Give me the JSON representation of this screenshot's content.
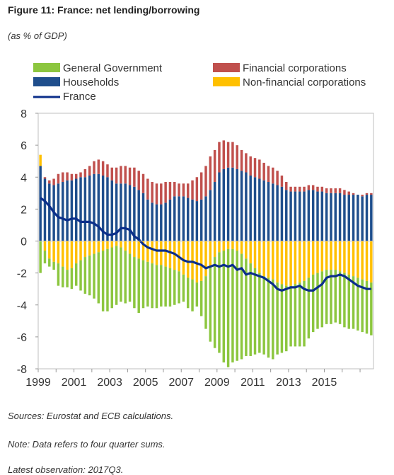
{
  "figure": {
    "title": "Figure 11: France: net lending/borrowing",
    "subtitle": "(as % of GDP)"
  },
  "notes": [
    "Sources: Eurostat and ECB calculations.",
    "Note: Data refers to four quarter sums.",
    "Latest observation: 2017Q3."
  ],
  "chart_data": {
    "type": "bar",
    "stacked": true,
    "title": "France: net lending/borrowing",
    "ylabel": "",
    "ylim": [
      -8,
      8
    ],
    "yticks": [
      8,
      6,
      4,
      2,
      0,
      -2,
      -4,
      -6,
      -8
    ],
    "xticks": [
      "1999",
      "2001",
      "2003",
      "2005",
      "2007",
      "2009",
      "2011",
      "2013",
      "2015"
    ],
    "legend": [
      {
        "name": "General Government",
        "color": "#8cc63f",
        "kind": "bar"
      },
      {
        "name": "Financial corporations",
        "color": "#c0504d",
        "kind": "bar"
      },
      {
        "name": "Households",
        "color": "#1f4e8c",
        "kind": "bar"
      },
      {
        "name": "Non-financial corporations",
        "color": "#ffc000",
        "kind": "bar"
      },
      {
        "name": "France",
        "color": "#0b2e8a",
        "kind": "line"
      }
    ],
    "legend_position": "top",
    "x_start": "1999Q1",
    "x_end": "2017Q3",
    "x": [
      "1999Q1",
      "1999Q2",
      "1999Q3",
      "1999Q4",
      "2000Q1",
      "2000Q2",
      "2000Q3",
      "2000Q4",
      "2001Q1",
      "2001Q2",
      "2001Q3",
      "2001Q4",
      "2002Q1",
      "2002Q2",
      "2002Q3",
      "2002Q4",
      "2003Q1",
      "2003Q2",
      "2003Q3",
      "2003Q4",
      "2004Q1",
      "2004Q2",
      "2004Q3",
      "2004Q4",
      "2005Q1",
      "2005Q2",
      "2005Q3",
      "2005Q4",
      "2006Q1",
      "2006Q2",
      "2006Q3",
      "2006Q4",
      "2007Q1",
      "2007Q2",
      "2007Q3",
      "2007Q4",
      "2008Q1",
      "2008Q2",
      "2008Q3",
      "2008Q4",
      "2009Q1",
      "2009Q2",
      "2009Q3",
      "2009Q4",
      "2010Q1",
      "2010Q2",
      "2010Q3",
      "2010Q4",
      "2011Q1",
      "2011Q2",
      "2011Q3",
      "2011Q4",
      "2012Q1",
      "2012Q2",
      "2012Q3",
      "2012Q4",
      "2013Q1",
      "2013Q2",
      "2013Q3",
      "2013Q4",
      "2014Q1",
      "2014Q2",
      "2014Q3",
      "2014Q4",
      "2015Q1",
      "2015Q2",
      "2015Q3",
      "2015Q4",
      "2016Q1",
      "2016Q2",
      "2016Q3",
      "2016Q4",
      "2017Q1",
      "2017Q2",
      "2017Q3"
    ],
    "series": [
      {
        "name": "Households",
        "color": "#1f4e8c",
        "values": [
          4.7,
          3.9,
          3.6,
          3.5,
          3.6,
          3.7,
          3.8,
          3.8,
          3.9,
          4.0,
          4.0,
          4.1,
          4.2,
          4.2,
          4.1,
          4.0,
          3.8,
          3.6,
          3.6,
          3.6,
          3.5,
          3.4,
          3.2,
          3.0,
          2.6,
          2.4,
          2.3,
          2.3,
          2.4,
          2.6,
          2.8,
          2.8,
          2.8,
          2.7,
          2.6,
          2.5,
          2.6,
          2.8,
          3.2,
          3.7,
          4.3,
          4.5,
          4.6,
          4.6,
          4.5,
          4.4,
          4.3,
          4.1,
          4.0,
          3.9,
          3.8,
          3.7,
          3.6,
          3.5,
          3.4,
          3.2,
          3.1,
          3.1,
          3.1,
          3.1,
          3.2,
          3.2,
          3.1,
          3.1,
          3.0,
          3.0,
          3.0,
          3.0,
          2.9,
          2.9,
          2.9,
          2.9,
          2.8,
          2.9,
          2.9
        ]
      },
      {
        "name": "Financial corporations",
        "color": "#c0504d",
        "values": [
          0.0,
          0.1,
          0.2,
          0.4,
          0.6,
          0.6,
          0.5,
          0.4,
          0.3,
          0.3,
          0.5,
          0.6,
          0.8,
          0.9,
          0.9,
          0.8,
          0.8,
          1.0,
          1.1,
          1.1,
          1.1,
          1.2,
          1.2,
          1.2,
          1.3,
          1.3,
          1.3,
          1.3,
          1.3,
          1.1,
          0.9,
          0.8,
          0.8,
          0.9,
          1.2,
          1.5,
          1.7,
          1.9,
          2.1,
          2.0,
          1.9,
          1.8,
          1.6,
          1.6,
          1.5,
          1.3,
          1.2,
          1.2,
          1.2,
          1.2,
          1.1,
          1.0,
          1.0,
          0.9,
          0.7,
          0.5,
          0.3,
          0.3,
          0.3,
          0.3,
          0.3,
          0.3,
          0.3,
          0.3,
          0.3,
          0.3,
          0.3,
          0.3,
          0.3,
          0.2,
          0.1,
          0.0,
          0.1,
          0.1,
          0.1
        ]
      },
      {
        "name": "Non-financial corporations",
        "color": "#ffc000",
        "values": [
          0.7,
          -0.6,
          -1.1,
          -1.3,
          -1.4,
          -1.6,
          -1.8,
          -1.7,
          -1.4,
          -1.2,
          -1.0,
          -0.9,
          -0.8,
          -0.7,
          -0.6,
          -0.5,
          -0.4,
          -0.3,
          -0.4,
          -0.6,
          -0.8,
          -1.0,
          -1.1,
          -1.2,
          -1.3,
          -1.4,
          -1.5,
          -1.5,
          -1.6,
          -1.7,
          -1.8,
          -1.9,
          -2.1,
          -2.3,
          -2.4,
          -2.6,
          -2.5,
          -2.2,
          -1.6,
          -1.0,
          -0.7,
          -0.6,
          -0.5,
          -0.5,
          -0.6,
          -0.8,
          -1.1,
          -1.4,
          -1.7,
          -2.0,
          -2.2,
          -2.3,
          -2.4,
          -2.6,
          -2.7,
          -2.8,
          -2.8,
          -2.7,
          -2.6,
          -2.5,
          -2.3,
          -2.1,
          -2.0,
          -1.9,
          -1.8,
          -1.8,
          -1.8,
          -1.9,
          -2.0,
          -2.1,
          -2.2,
          -2.3,
          -2.4,
          -2.5,
          -2.6
        ]
      },
      {
        "name": "General Government",
        "color": "#8cc63f",
        "values": [
          -2.0,
          -0.8,
          -0.5,
          -0.5,
          -1.4,
          -1.3,
          -1.1,
          -1.3,
          -1.4,
          -1.9,
          -2.3,
          -2.5,
          -2.8,
          -3.2,
          -3.8,
          -3.9,
          -3.8,
          -3.7,
          -3.4,
          -3.3,
          -3.0,
          -3.2,
          -3.4,
          -3.0,
          -2.8,
          -2.8,
          -2.7,
          -2.6,
          -2.5,
          -2.4,
          -2.2,
          -2.0,
          -1.7,
          -1.9,
          -2.0,
          -1.5,
          -2.2,
          -3.3,
          -4.7,
          -5.7,
          -6.3,
          -7.0,
          -7.4,
          -7.1,
          -6.9,
          -6.6,
          -6.1,
          -5.8,
          -5.4,
          -5.0,
          -4.9,
          -5.0,
          -5.0,
          -4.5,
          -4.3,
          -4.1,
          -3.8,
          -3.9,
          -4.0,
          -4.1,
          -3.8,
          -3.6,
          -3.5,
          -3.5,
          -3.4,
          -3.4,
          -3.3,
          -3.3,
          -3.4,
          -3.4,
          -3.3,
          -3.3,
          -3.3,
          -3.3,
          -3.3
        ]
      },
      {
        "name": "France",
        "color": "#0b2e8a",
        "type": "line",
        "values": [
          2.7,
          2.5,
          2.2,
          1.8,
          1.5,
          1.4,
          1.3,
          1.4,
          1.4,
          1.2,
          1.2,
          1.2,
          1.1,
          0.9,
          0.6,
          0.4,
          0.4,
          0.5,
          0.8,
          0.8,
          0.7,
          0.3,
          0.1,
          -0.2,
          -0.4,
          -0.5,
          -0.6,
          -0.6,
          -0.6,
          -0.7,
          -0.8,
          -1.0,
          -1.2,
          -1.3,
          -1.3,
          -1.4,
          -1.5,
          -1.7,
          -1.6,
          -1.5,
          -1.6,
          -1.5,
          -1.6,
          -1.5,
          -1.8,
          -1.7,
          -2.1,
          -2.0,
          -2.1,
          -2.2,
          -2.3,
          -2.5,
          -2.7,
          -3.0,
          -3.1,
          -3.0,
          -2.9,
          -2.9,
          -2.8,
          -3.0,
          -3.1,
          -3.1,
          -2.9,
          -2.7,
          -2.3,
          -2.2,
          -2.2,
          -2.1,
          -2.2,
          -2.4,
          -2.6,
          -2.8,
          -2.9,
          -3.0,
          -3.0
        ]
      }
    ]
  }
}
